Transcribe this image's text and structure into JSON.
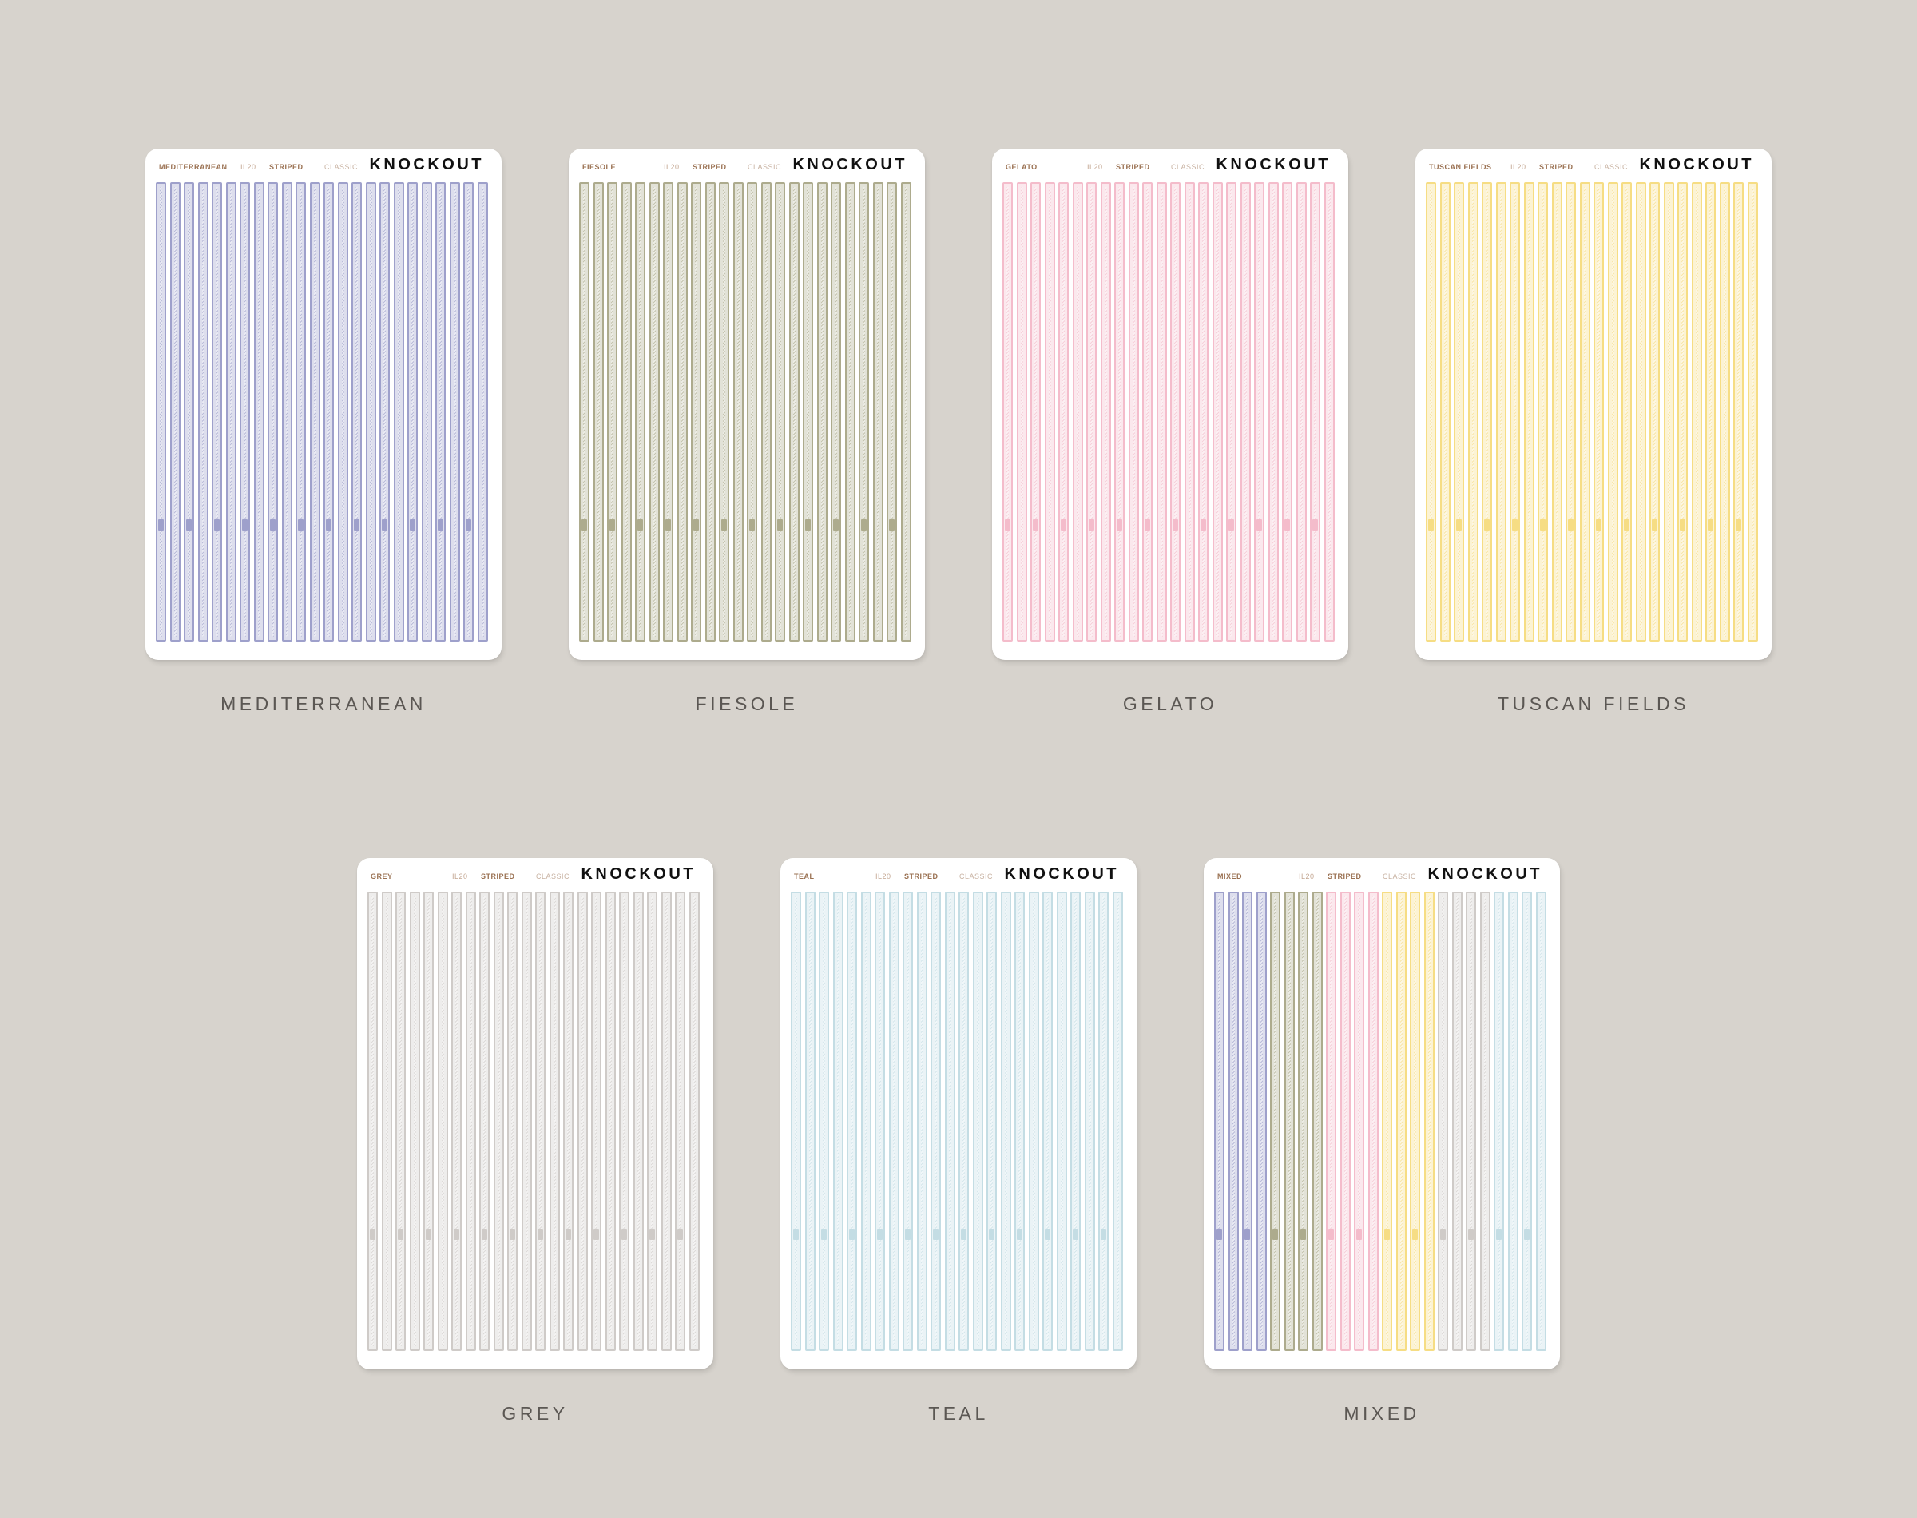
{
  "brand": "KNOCKOUT",
  "code": "IL20",
  "style": "STRIPED",
  "variant": "CLASSIC",
  "sheets": [
    {
      "name": "MEDITERRANEAN",
      "header_name": "MEDITERRANEAN",
      "colors": [
        "#9ea0cb"
      ]
    },
    {
      "name": "FIESOLE",
      "header_name": "FIESOLE",
      "colors": [
        "#adab8d"
      ]
    },
    {
      "name": "GELATO",
      "header_name": "GELATO",
      "colors": [
        "#f4bccb"
      ]
    },
    {
      "name": "TUSCAN FIELDS",
      "header_name": "TUSCAN FIELDS",
      "colors": [
        "#f6dd84"
      ]
    },
    {
      "name": "GREY",
      "header_name": "GREY",
      "colors": [
        "#cfcbc8"
      ]
    },
    {
      "name": "TEAL",
      "header_name": "TEAL",
      "colors": [
        "#c4dde4"
      ]
    },
    {
      "name": "MIXED",
      "header_name": "MIXED",
      "colors": [
        "#9ea0cb",
        "#9ea0cb",
        "#9ea0cb",
        "#9ea0cb",
        "#adab8d",
        "#adab8d",
        "#adab8d",
        "#adab8d",
        "#f4bccb",
        "#f4bccb",
        "#f4bccb",
        "#f4bccb",
        "#f6dd84",
        "#f6dd84",
        "#f6dd84",
        "#f6dd84",
        "#cfcbc8",
        "#cfcbc8",
        "#cfcbc8",
        "#cfcbc8",
        "#c4dde4",
        "#c4dde4",
        "#c4dde4",
        "#c4dde4"
      ]
    }
  ],
  "strips_per_sheet": 24
}
